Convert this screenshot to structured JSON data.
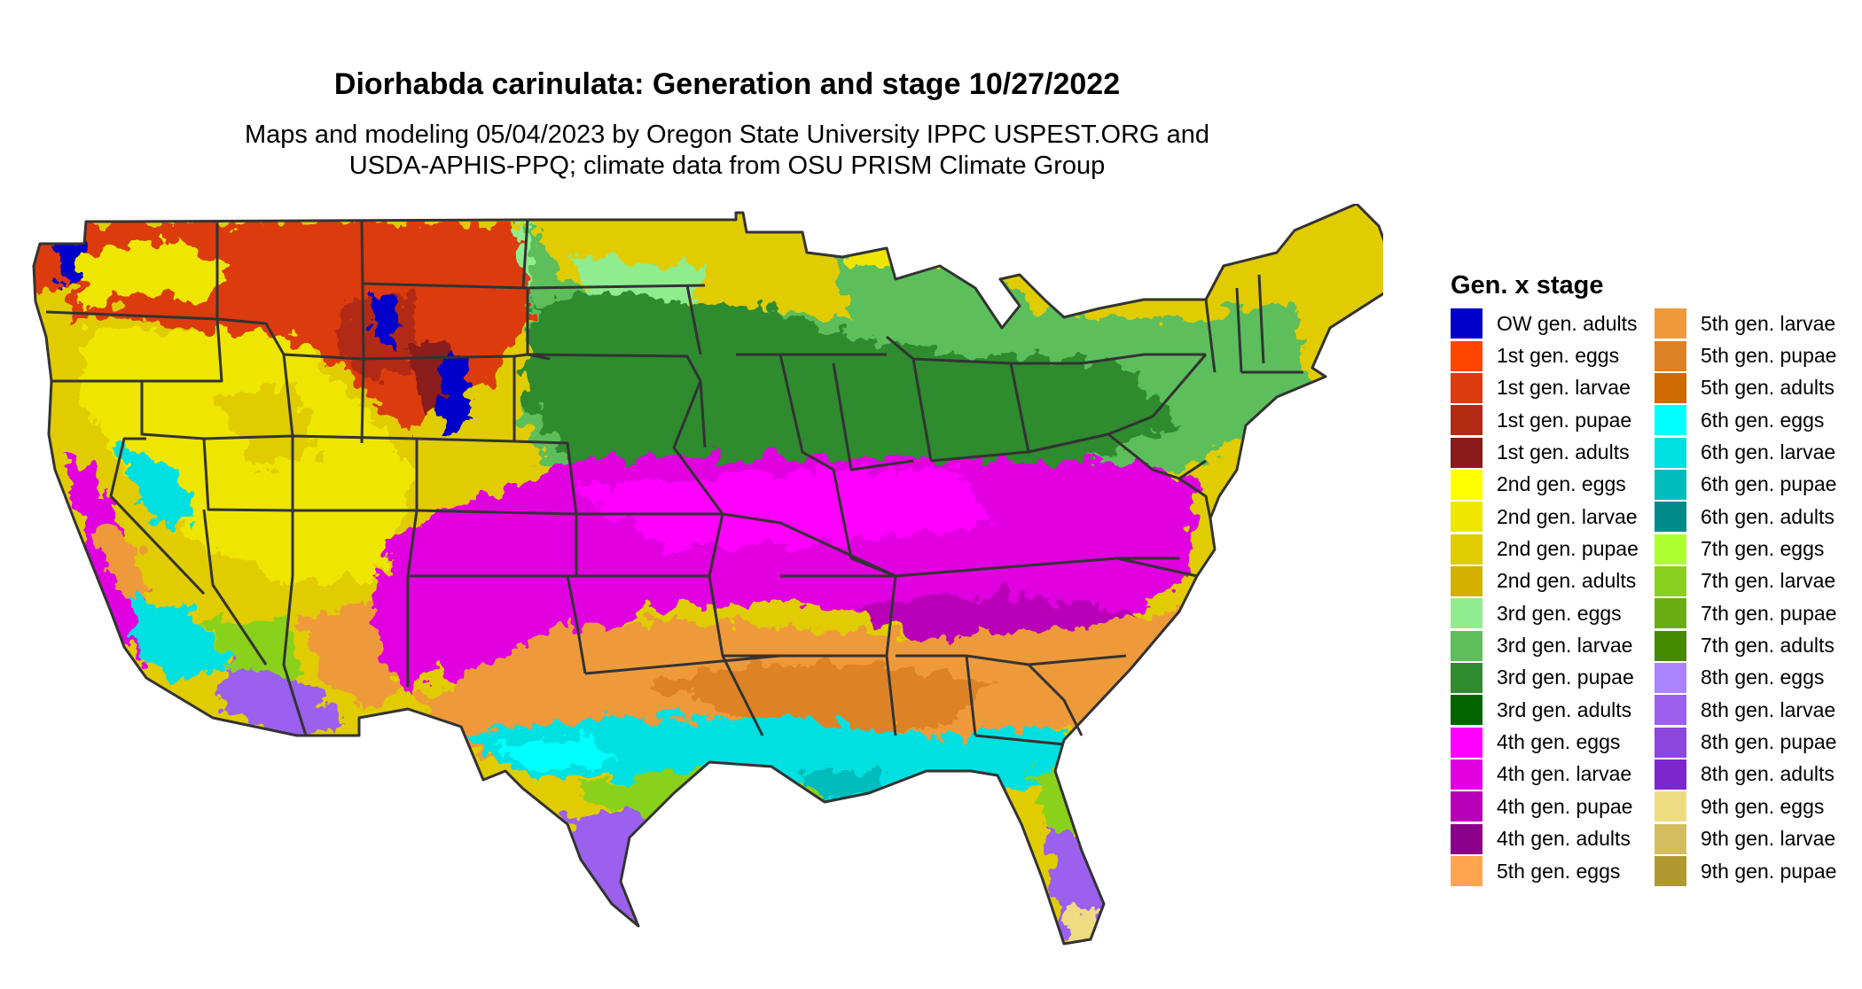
{
  "title": "Diorhabda carinulata: Generation and stage 10/27/2022",
  "subtitle_line1": "Maps and modeling 05/04/2023 by Oregon State University IPPC USPEST.ORG and",
  "subtitle_line2": "USDA-APHIS-PPQ; climate data from OSU PRISM Climate Group",
  "legend": {
    "title": "Gen. x stage",
    "column1": [
      {
        "label": "OW gen. adults",
        "color": "#0000cd"
      },
      {
        "label": "1st gen. eggs",
        "color": "#ff4500"
      },
      {
        "label": "1st gen. larvae",
        "color": "#dc3a0f"
      },
      {
        "label": "1st gen. pupae",
        "color": "#b22a12"
      },
      {
        "label": "1st gen. adults",
        "color": "#8b1a1a"
      },
      {
        "label": "2nd gen. eggs",
        "color": "#ffff00"
      },
      {
        "label": "2nd gen. larvae",
        "color": "#eee600"
      },
      {
        "label": "2nd gen. pupae",
        "color": "#e0cc00"
      },
      {
        "label": "2nd gen. adults",
        "color": "#d4b000"
      },
      {
        "label": "3rd gen. eggs",
        "color": "#8fec8f"
      },
      {
        "label": "3rd gen. larvae",
        "color": "#5cbf5c"
      },
      {
        "label": "3rd gen. pupae",
        "color": "#2e8b2e"
      },
      {
        "label": "3rd gen. adults",
        "color": "#006400"
      },
      {
        "label": "4th gen. eggs",
        "color": "#ff00ff"
      },
      {
        "label": "4th gen. larvae",
        "color": "#e000e0"
      },
      {
        "label": "4th gen. pupae",
        "color": "#b800b8"
      },
      {
        "label": "4th gen. adults",
        "color": "#8b008b"
      },
      {
        "label": "5th gen. eggs",
        "color": "#ffa54f"
      }
    ],
    "column2": [
      {
        "label": "5th gen. larvae",
        "color": "#ee9a3a"
      },
      {
        "label": "5th gen. pupae",
        "color": "#dd8326"
      },
      {
        "label": "5th gen. adults",
        "color": "#cd6a00"
      },
      {
        "label": "6th gen. eggs",
        "color": "#00ffff"
      },
      {
        "label": "6th gen. larvae",
        "color": "#00e0e0"
      },
      {
        "label": "6th gen. pupae",
        "color": "#00bcbc"
      },
      {
        "label": "6th gen. adults",
        "color": "#008b8b"
      },
      {
        "label": "7th gen. eggs",
        "color": "#adff2f"
      },
      {
        "label": "7th gen. larvae",
        "color": "#8ad11f"
      },
      {
        "label": "7th gen. pupae",
        "color": "#6aad12"
      },
      {
        "label": "7th gen. adults",
        "color": "#458b00"
      },
      {
        "label": "8th gen. eggs",
        "color": "#ab82ff"
      },
      {
        "label": "8th gen. larvae",
        "color": "#9b60ee"
      },
      {
        "label": "8th gen. pupae",
        "color": "#8c45dd"
      },
      {
        "label": "8th gen. adults",
        "color": "#7d26cd"
      },
      {
        "label": "9th gen. eggs",
        "color": "#eedc82"
      },
      {
        "label": "9th gen. larvae",
        "color": "#d2be5e"
      },
      {
        "label": "9th gen. pupae",
        "color": "#b09a30"
      }
    ]
  }
}
